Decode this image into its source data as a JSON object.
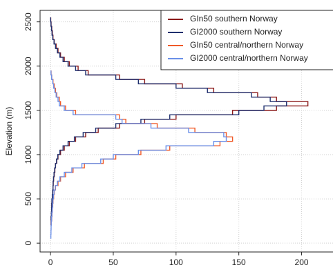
{
  "chart_data": {
    "type": "step",
    "x_label": "Elevation (m)",
    "y": [
      0,
      50,
      100,
      150,
      200,
      250,
      300,
      350,
      400,
      450,
      500,
      550,
      600,
      650,
      700,
      750,
      800,
      850,
      900,
      950,
      1000,
      1050,
      1100,
      1150,
      1200,
      1250,
      1300,
      1350,
      1400,
      1450,
      1500,
      1550,
      1600,
      1650,
      1700,
      1750,
      1800,
      1850,
      1900,
      1950,
      2000,
      2050,
      2100,
      2150,
      2200,
      2250,
      2300,
      2350,
      2400,
      2450,
      2500
    ],
    "series": [
      {
        "name": "GIn50 southern Norway",
        "color": "#8b1a1a",
        "values": [
          null,
          null,
          null,
          null,
          0.5,
          0.5,
          0.8,
          1,
          1,
          1.2,
          1.5,
          1.8,
          2,
          2.2,
          2.5,
          3,
          3.5,
          4,
          5,
          6,
          8,
          11,
          15,
          20,
          28,
          38,
          55,
          75,
          100,
          145,
          180,
          205,
          180,
          165,
          130,
          105,
          75,
          55,
          30,
          22,
          15,
          11,
          8,
          6,
          4.5,
          3,
          2,
          1.5,
          1,
          0.5,
          0.2
        ]
      },
      {
        "name": "GI2000 southern Norway",
        "color": "#1f2f6e",
        "values": [
          null,
          null,
          null,
          null,
          0.4,
          0.5,
          0.7,
          0.9,
          1,
          1.1,
          1.4,
          1.7,
          2,
          2.1,
          2.4,
          2.8,
          3.3,
          4,
          4.8,
          5.8,
          7.5,
          10,
          14,
          19,
          26,
          36,
          52,
          72,
          95,
          150,
          170,
          188,
          175,
          160,
          125,
          100,
          70,
          52,
          28,
          20,
          14,
          10,
          7.5,
          5.5,
          4,
          2.8,
          1.8,
          1.2,
          0.8,
          0.4,
          0.1
        ]
      },
      {
        "name": "GIn50 central/northern Norway",
        "color": "#f05a28",
        "values": [
          null,
          null,
          null,
          null,
          0.5,
          1,
          1.2,
          1.5,
          1.8,
          2,
          2.5,
          3,
          4,
          6,
          8,
          12,
          18,
          27,
          42,
          52,
          72,
          95,
          135,
          145,
          140,
          115,
          85,
          60,
          55,
          20,
          12,
          8,
          7,
          5,
          4,
          3,
          2,
          1,
          0.5,
          null,
          null,
          null,
          null,
          null,
          null,
          null,
          null,
          null,
          null,
          null,
          null
        ]
      },
      {
        "name": "GI2000 central/northern Norway",
        "color": "#6a8fe8",
        "values": [
          null,
          0.3,
          0.4,
          0.5,
          0.6,
          0.9,
          1.1,
          1.4,
          1.7,
          1.9,
          2.3,
          2.8,
          3.8,
          5.5,
          7.5,
          11,
          17,
          25,
          40,
          50,
          70,
          92,
          130,
          140,
          138,
          110,
          80,
          57,
          52,
          18,
          11,
          7,
          6,
          4.5,
          3.5,
          2.5,
          1.8,
          0.9,
          0.4,
          null,
          null,
          null,
          null,
          null,
          null,
          null,
          null,
          null,
          null,
          null,
          null
        ]
      }
    ],
    "xlim": [
      -8.3,
      225
    ],
    "ylim": [
      -100,
      2630
    ],
    "xticks": [
      0,
      50,
      100,
      150,
      200
    ],
    "yticks": [
      0,
      500,
      1000,
      1500,
      2000,
      2500
    ],
    "grid": true,
    "legend": "top-right"
  }
}
